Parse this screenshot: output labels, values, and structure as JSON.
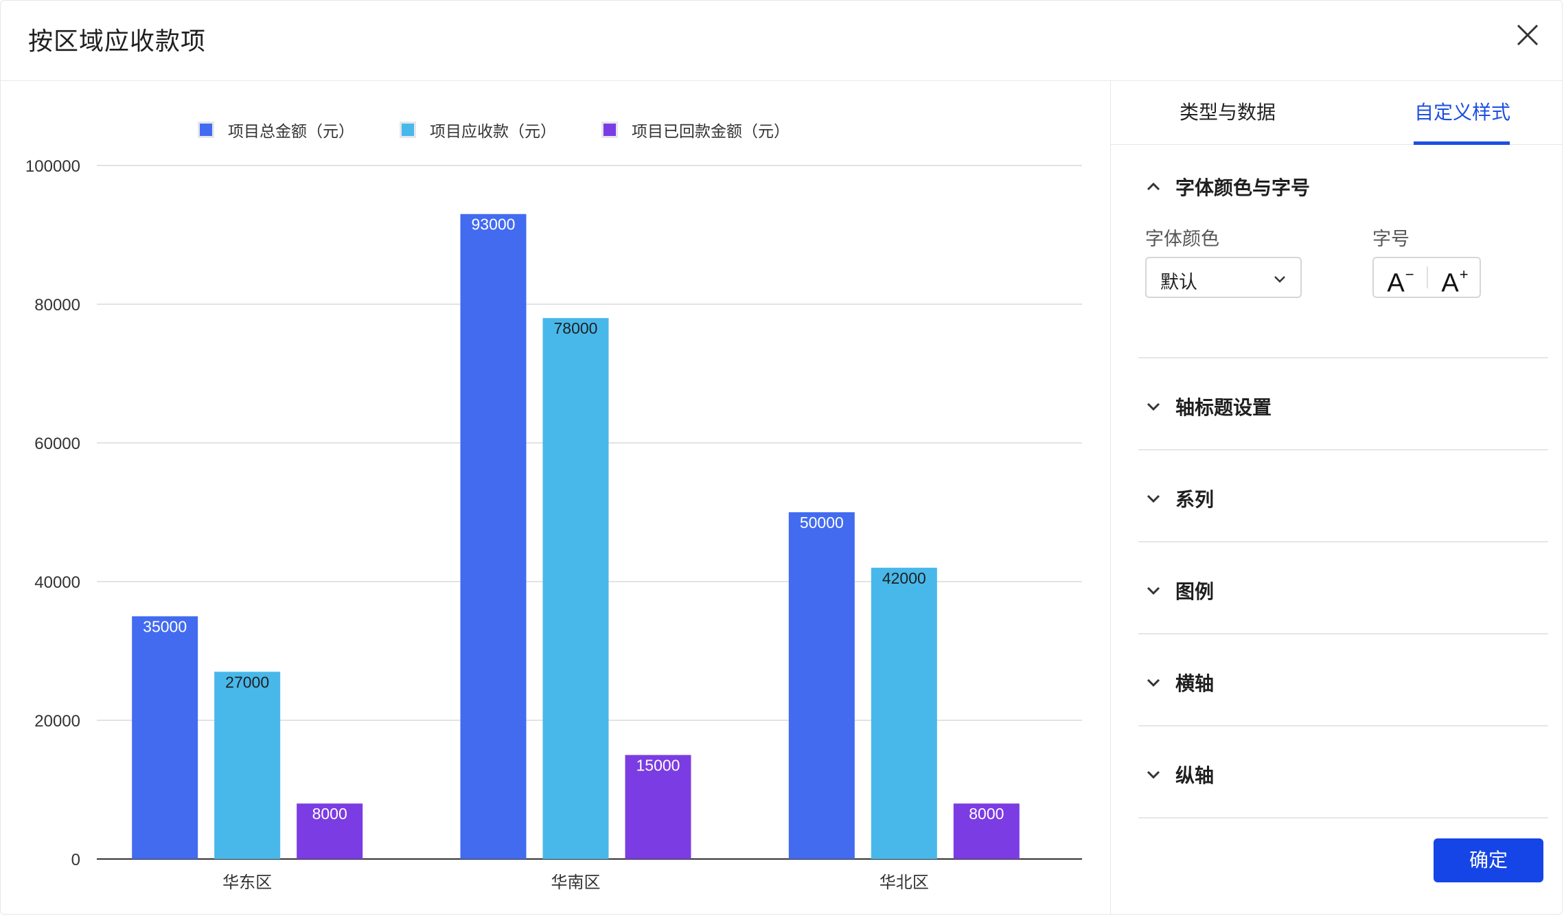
{
  "dialog": {
    "title": "按区域应收款项"
  },
  "chart_data": {
    "type": "bar",
    "categories": [
      "华东区",
      "华南区",
      "华北区"
    ],
    "series": [
      {
        "name": "项目总金额（元）",
        "color": "#426bf0",
        "values": [
          35000,
          93000,
          50000
        ],
        "label_color": "#ffffff"
      },
      {
        "name": "项目应收款（元）",
        "color": "#48b8ea",
        "values": [
          27000,
          78000,
          42000
        ],
        "label_color": "#1f1f1f"
      },
      {
        "name": "项目已回款金额（元）",
        "color": "#7b3ce3",
        "values": [
          8000,
          15000,
          8000
        ],
        "label_color": "#ffffff"
      }
    ],
    "ylim": [
      0,
      100000
    ],
    "yticks": [
      "0",
      "20000",
      "40000",
      "60000",
      "80000",
      "100000"
    ],
    "title": "",
    "xlabel": "",
    "ylabel": "",
    "grid": true,
    "legend": "top-center",
    "data_labels": true
  },
  "panel": {
    "tabs": [
      {
        "label": "类型与数据",
        "active": false
      },
      {
        "label": "自定义样式",
        "active": true
      }
    ],
    "sections": [
      {
        "label": "字体颜色与字号",
        "expanded": true
      },
      {
        "label": "轴标题设置",
        "expanded": false
      },
      {
        "label": "系列",
        "expanded": false
      },
      {
        "label": "图例",
        "expanded": false
      },
      {
        "label": "横轴",
        "expanded": false
      },
      {
        "label": "纵轴",
        "expanded": false
      }
    ],
    "font_color_label": "字体颜色",
    "font_color_value": "默认",
    "font_size_label": "字号",
    "font_size_decrease": "A",
    "font_size_increase": "A",
    "confirm_label": "确定",
    "accent_color": "#1d4fe0"
  }
}
